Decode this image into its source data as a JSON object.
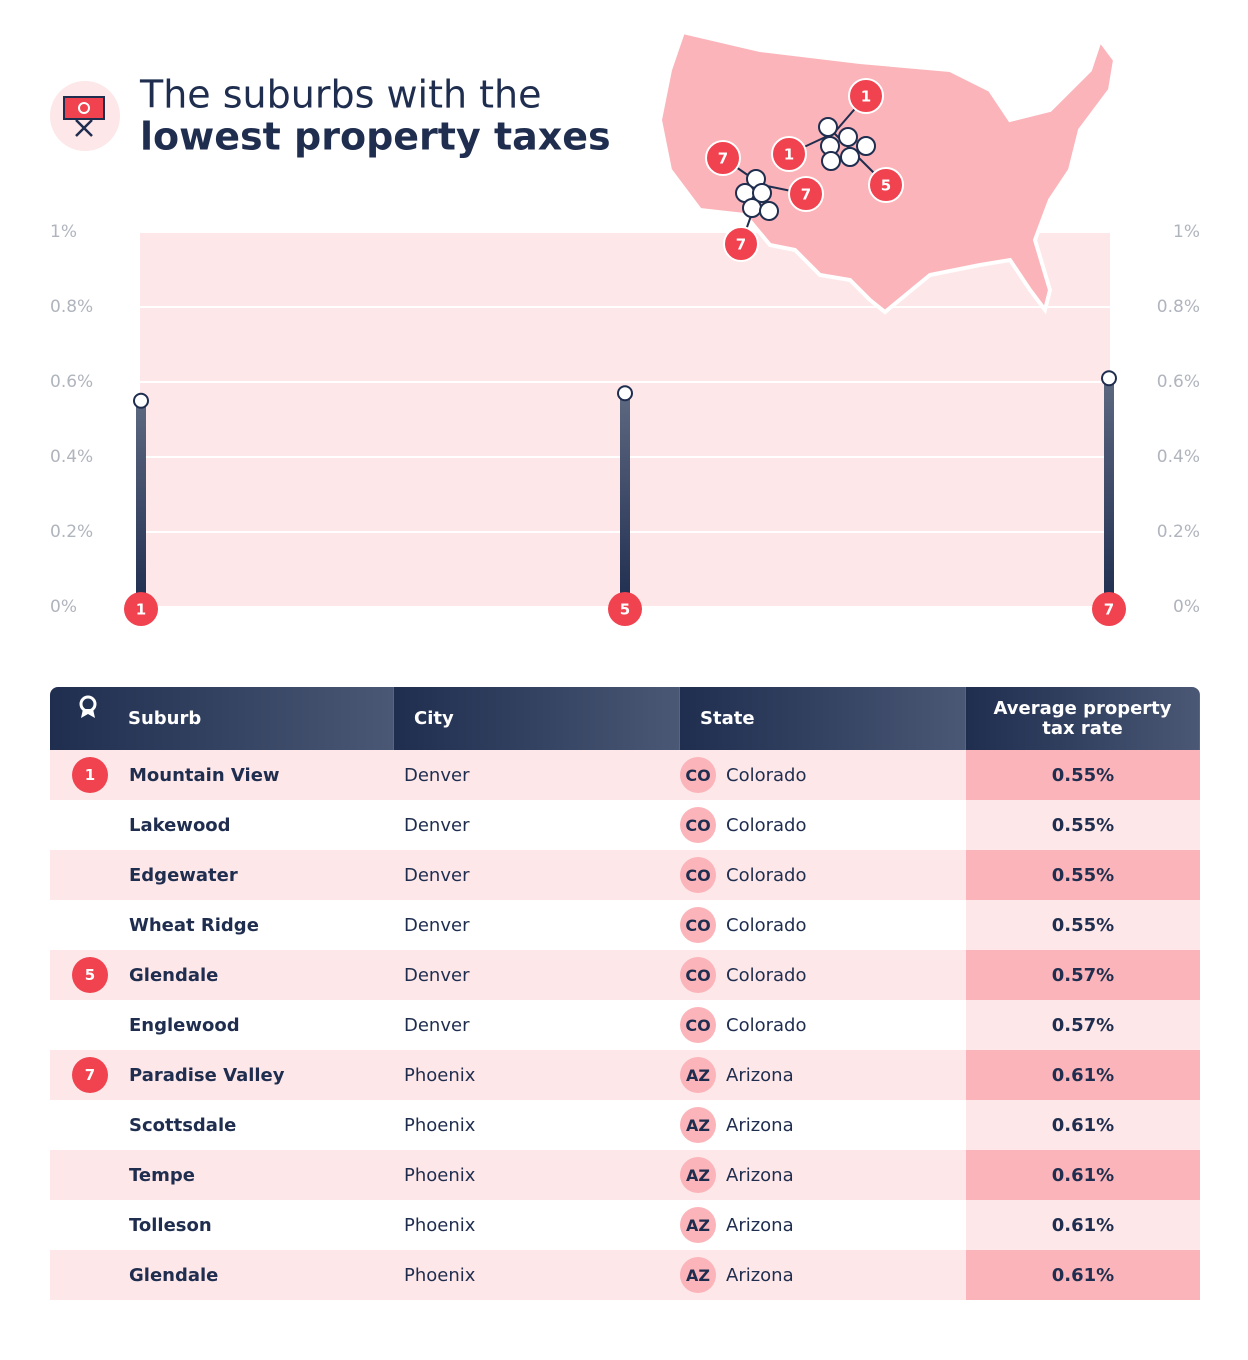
{
  "title": [
    "The suburbs with the",
    "lowest property taxes"
  ],
  "chart_data": {
    "type": "lollipop",
    "categories": [
      "1",
      "5",
      "7"
    ],
    "values": [
      0.55,
      0.57,
      0.61
    ],
    "color": "#1f2d4f",
    "badge_color": "#f0424f",
    "ylim": [
      0,
      1
    ],
    "yticks": [
      {
        "value": 0,
        "label": "0%"
      },
      {
        "value": 0.2,
        "label": "0.2%"
      },
      {
        "value": 0.4,
        "label": "0.4%"
      },
      {
        "value": 0.6,
        "label": "0.6%"
      },
      {
        "value": 0.8,
        "label": "0.8%"
      },
      {
        "value": 1,
        "label": "1%"
      }
    ],
    "grid": true
  },
  "map": {
    "markers": [
      "1",
      "1",
      "5",
      "7",
      "7",
      "7"
    ]
  },
  "table": {
    "header": [
      "Suburb",
      "City",
      "State",
      "Average property tax rate"
    ],
    "rows": [
      [
        "1",
        "Mountain View",
        "Denver",
        "CO",
        "Colorado",
        "0.55%"
      ],
      [
        null,
        "Lakewood",
        "Denver",
        "CO",
        "Colorado",
        "0.55%"
      ],
      [
        null,
        "Edgewater",
        "Denver",
        "CO",
        "Colorado",
        "0.55%"
      ],
      [
        null,
        "Wheat Ridge",
        "Denver",
        "CO",
        "Colorado",
        "0.55%"
      ],
      [
        "5",
        "Glendale",
        "Denver",
        "CO",
        "Colorado",
        "0.57%"
      ],
      [
        null,
        "Englewood",
        "Denver",
        "CO",
        "Colorado",
        "0.57%"
      ],
      [
        "7",
        "Paradise Valley",
        "Phoenix",
        "AZ",
        "Arizona",
        "0.61%"
      ],
      [
        null,
        "Scottsdale",
        "Phoenix",
        "AZ",
        "Arizona",
        "0.61%"
      ],
      [
        null,
        "Tempe",
        "Phoenix",
        "AZ",
        "Arizona",
        "0.61%"
      ],
      [
        null,
        "Tolleson",
        "Phoenix",
        "AZ",
        "Arizona",
        "0.61%"
      ],
      [
        null,
        "Glendale",
        "Phoenix",
        "AZ",
        "Arizona",
        "0.61%"
      ]
    ]
  }
}
